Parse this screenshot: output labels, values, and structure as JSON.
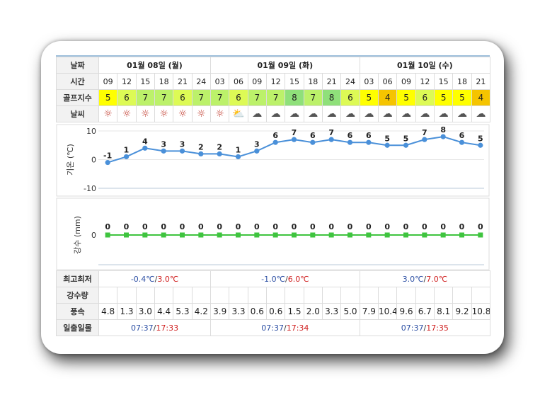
{
  "headers": {
    "date": "날짜",
    "time": "시간",
    "golf": "골프지수",
    "weather": "날씨",
    "minmax": "최고최저",
    "rain": "강수량",
    "wind": "풍속",
    "sun": "일출일몰"
  },
  "days": [
    {
      "label": "01월 08일 (월)",
      "min": "-0.4℃",
      "max": "3.0℃",
      "sunrise": "07:37",
      "sunset": "17:33"
    },
    {
      "label": "01월 09일 (화)",
      "min": "-1.0℃",
      "max": "6.0℃",
      "sunrise": "07:37",
      "sunset": "17:34"
    },
    {
      "label": "01월 10일 (수)",
      "min": "3.0℃",
      "max": "7.0℃",
      "sunrise": "07:37",
      "sunset": "17:35"
    }
  ],
  "hours": [
    "09",
    "12",
    "15",
    "18",
    "21",
    "24",
    "03",
    "06",
    "09",
    "12",
    "15",
    "18",
    "21",
    "24",
    "03",
    "06",
    "09",
    "12",
    "15",
    "18",
    "21"
  ],
  "golf_index": [
    "5",
    "6",
    "7",
    "7",
    "6",
    "7",
    "7",
    "6",
    "7",
    "7",
    "8",
    "7",
    "8",
    "6",
    "5",
    "4",
    "5",
    "6",
    "5",
    "5",
    "4"
  ],
  "golf_colors": [
    "#ffff00",
    "#ddfa55",
    "#bcf16a",
    "#bcf16a",
    "#ddfa55",
    "#bcf16a",
    "#bcf16a",
    "#ddfa55",
    "#bcf16a",
    "#bcf16a",
    "#8fe07a",
    "#bcf16a",
    "#8fe07a",
    "#ddfa55",
    "#ffff00",
    "#f5c400",
    "#ffff00",
    "#ddfa55",
    "#ffff00",
    "#ffff00",
    "#f5c400"
  ],
  "weather_icons": [
    "sun-icon",
    "sun-icon",
    "sun-icon",
    "sun-icon",
    "sun-icon",
    "sun-icon",
    "sun-icon",
    "partly-cloudy-icon",
    "cloud-icon",
    "cloud-icon",
    "cloud-icon",
    "cloud-icon",
    "cloud-icon",
    "cloud-icon",
    "cloud-icon",
    "cloud-icon",
    "cloud-icon",
    "cloud-icon",
    "cloud-icon",
    "cloud-icon",
    "cloud-icon"
  ],
  "wind": [
    "4.8",
    "1.3",
    "3.0",
    "4.4",
    "5.3",
    "4.2",
    "3.9",
    "3.3",
    "0.6",
    "0.6",
    "1.5",
    "2.0",
    "3.3",
    "5.0",
    "7.9",
    "10.4",
    "9.6",
    "6.7",
    "8.1",
    "9.2",
    "10.8"
  ],
  "chart_data": [
    {
      "type": "line",
      "ylabel": "기온 (℃)",
      "ylim": [
        -10,
        10
      ],
      "yticks": [
        "10",
        "0",
        "-10"
      ],
      "x": [
        "09",
        "12",
        "15",
        "18",
        "21",
        "24",
        "03",
        "06",
        "09",
        "12",
        "15",
        "18",
        "21",
        "24",
        "03",
        "06",
        "09",
        "12",
        "15",
        "18",
        "21"
      ],
      "values": [
        -1,
        1,
        4,
        3,
        3,
        2,
        2,
        1,
        3,
        6,
        7,
        6,
        7,
        6,
        6,
        5,
        5,
        7,
        8,
        6,
        5
      ],
      "value_labels": [
        "-1",
        "1",
        "4",
        "3",
        "3",
        "2",
        "2",
        "1",
        "3",
        "6",
        "7",
        "6",
        "7",
        "6",
        "6",
        "5",
        "5",
        "7",
        "8",
        "6",
        "5"
      ],
      "color": "#4a90d9"
    },
    {
      "type": "line",
      "ylabel": "강수 (mm)",
      "yticks": [
        "0"
      ],
      "x": [
        "09",
        "12",
        "15",
        "18",
        "21",
        "24",
        "03",
        "06",
        "09",
        "12",
        "15",
        "18",
        "21",
        "24",
        "03",
        "06",
        "09",
        "12",
        "15",
        "18",
        "21"
      ],
      "values": [
        0,
        0,
        0,
        0,
        0,
        0,
        0,
        0,
        0,
        0,
        0,
        0,
        0,
        0,
        0,
        0,
        0,
        0,
        0,
        0,
        0
      ],
      "value_labels": [
        "0",
        "0",
        "0",
        "0",
        "0",
        "0",
        "0",
        "0",
        "0",
        "0",
        "0",
        "0",
        "0",
        "0",
        "0",
        "0",
        "0",
        "0",
        "0",
        "0",
        "0"
      ],
      "color": "#3fc43f"
    }
  ]
}
